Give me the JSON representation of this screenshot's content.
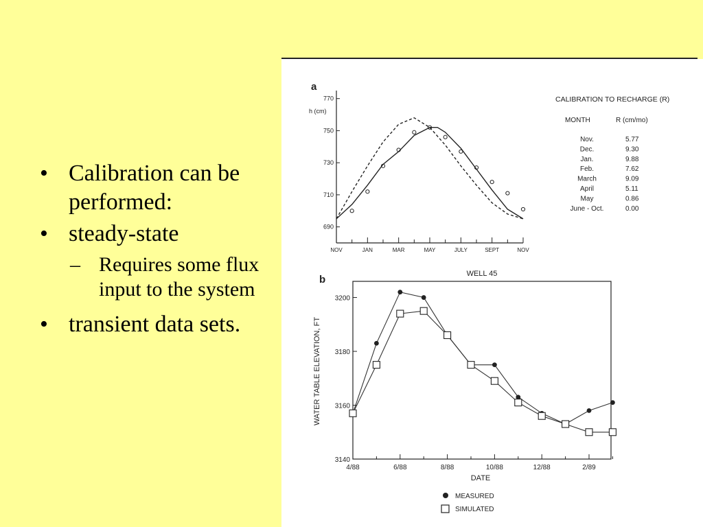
{
  "slide": {
    "background": "#ffff99",
    "bullets": [
      {
        "text": "Calibration can be performed:"
      },
      {
        "text": "steady-state",
        "sub": "Requires some flux input to the system"
      },
      {
        "text": "transient data sets."
      }
    ]
  },
  "chart_data": [
    {
      "type": "line",
      "panel": "a",
      "ylabel": "h (cm)",
      "ylim": [
        680,
        775
      ],
      "yticks": [
        690,
        710,
        730,
        750,
        770
      ],
      "x_ticks": [
        "NOV",
        "JAN",
        "MAR",
        "MAY",
        "JULY",
        "SEPT",
        "NOV"
      ],
      "xlim": [
        0,
        12
      ],
      "series": [
        {
          "name": "",
          "style": "circles",
          "points": [
            [
              1,
              700
            ],
            [
              2,
              712
            ],
            [
              3,
              728
            ],
            [
              4,
              738
            ],
            [
              5,
              749
            ],
            [
              6,
              752
            ],
            [
              7,
              746
            ],
            [
              8,
              737
            ],
            [
              9,
              727
            ],
            [
              10,
              718
            ],
            [
              11,
              711
            ],
            [
              12,
              701
            ]
          ]
        },
        {
          "name": "",
          "style": "solid",
          "points": [
            [
              0,
              695
            ],
            [
              1,
              704
            ],
            [
              2,
              716
            ],
            [
              3,
              729
            ],
            [
              4,
              737
            ],
            [
              5,
              747
            ],
            [
              6,
              752
            ],
            [
              6.5,
              752
            ],
            [
              7,
              749
            ],
            [
              8,
              739
            ],
            [
              9,
              726
            ],
            [
              10,
              713
            ],
            [
              11,
              701
            ],
            [
              12,
              695
            ]
          ]
        },
        {
          "name": "",
          "style": "dashed",
          "points": [
            [
              0,
              695
            ],
            [
              1,
              712
            ],
            [
              2,
              728
            ],
            [
              3,
              743
            ],
            [
              4,
              754
            ],
            [
              5,
              758
            ],
            [
              6,
              752
            ],
            [
              7,
              741
            ],
            [
              8,
              728
            ],
            [
              9,
              716
            ],
            [
              10,
              705
            ],
            [
              11,
              698
            ],
            [
              12,
              695
            ]
          ]
        }
      ],
      "table": {
        "title": "CALIBRATION TO RECHARGE (R)",
        "col1": "MONTH",
        "col2": "R (cm/mo)",
        "rows": [
          {
            "month": "Nov.",
            "value": "5.77"
          },
          {
            "month": "Dec.",
            "value": "9.30"
          },
          {
            "month": "Jan.",
            "value": "9.88"
          },
          {
            "month": "Feb.",
            "value": "7.62"
          },
          {
            "month": "March",
            "value": "9.09"
          },
          {
            "month": "April",
            "value": "5.11"
          },
          {
            "month": "May",
            "value": "0.86"
          },
          {
            "month": "June - Oct.",
            "value": "0.00"
          }
        ]
      }
    },
    {
      "type": "line",
      "panel": "b",
      "title": "WELL 45",
      "xlabel": "DATE",
      "ylabel": "WATER TABLE ELEVATION, FT",
      "ylim": [
        3140,
        3206
      ],
      "yticks": [
        3140,
        3160,
        3180,
        3200
      ],
      "x_ticks": [
        "4/88",
        "6/88",
        "8/88",
        "10/88",
        "12/88",
        "2/89"
      ],
      "x": [
        "4/88",
        "5/88",
        "6/88",
        "7/88",
        "8/88",
        "9/88",
        "10/88",
        "11/88",
        "12/88",
        "1/89",
        "2/89",
        "3/89"
      ],
      "series": [
        {
          "name": "MEASURED",
          "marker": "filled-circle",
          "values": [
            3157,
            3183,
            3202,
            3200,
            3186,
            3175,
            3175,
            3163,
            3157,
            3153,
            3158,
            3161
          ]
        },
        {
          "name": "SIMULATED",
          "marker": "open-square",
          "values": [
            3157,
            3175,
            3194,
            3195,
            3186,
            3175,
            3169,
            3161,
            3156,
            3153,
            3150,
            3150
          ]
        }
      ]
    }
  ]
}
